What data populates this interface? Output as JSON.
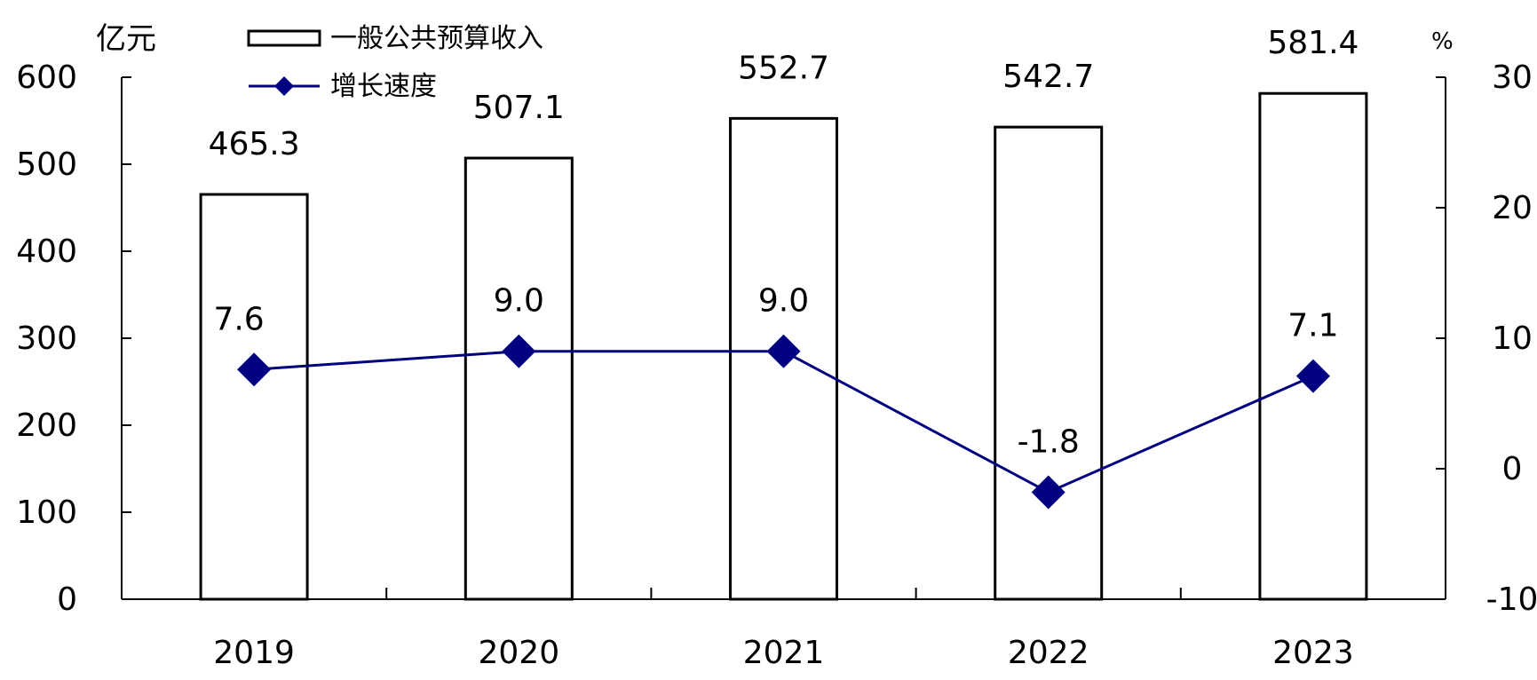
{
  "chart_data": {
    "type": "bar",
    "categories": [
      "2019",
      "2020",
      "2021",
      "2022",
      "2023"
    ],
    "series": [
      {
        "name": "一般公共预算收入",
        "type": "bar",
        "axis": "left",
        "values": [
          465.3,
          507.1,
          552.7,
          542.7,
          581.4
        ]
      },
      {
        "name": "增长速度",
        "type": "line",
        "axis": "right",
        "marker": "diamond",
        "values": [
          7.6,
          9.0,
          9.0,
          -1.8,
          7.1
        ]
      }
    ],
    "y_left": {
      "unit": "亿元",
      "range": [
        0,
        600
      ],
      "ticks": [
        0,
        100,
        200,
        300,
        400,
        500,
        600
      ]
    },
    "y_right": {
      "unit": "%",
      "range": [
        -10,
        30
      ],
      "ticks": [
        -10,
        0,
        10,
        20,
        30
      ]
    },
    "bar_labels": [
      "465.3",
      "507.1",
      "552.7",
      "542.7",
      "581.4"
    ],
    "line_labels": [
      "7.6",
      "9.0",
      "9.0",
      "-1.8",
      "7.1"
    ],
    "grid": false,
    "legend_position": "top-left",
    "colors": {
      "bar_fill": "#ffffff",
      "bar_stroke": "#000000",
      "line": "#000080"
    }
  }
}
